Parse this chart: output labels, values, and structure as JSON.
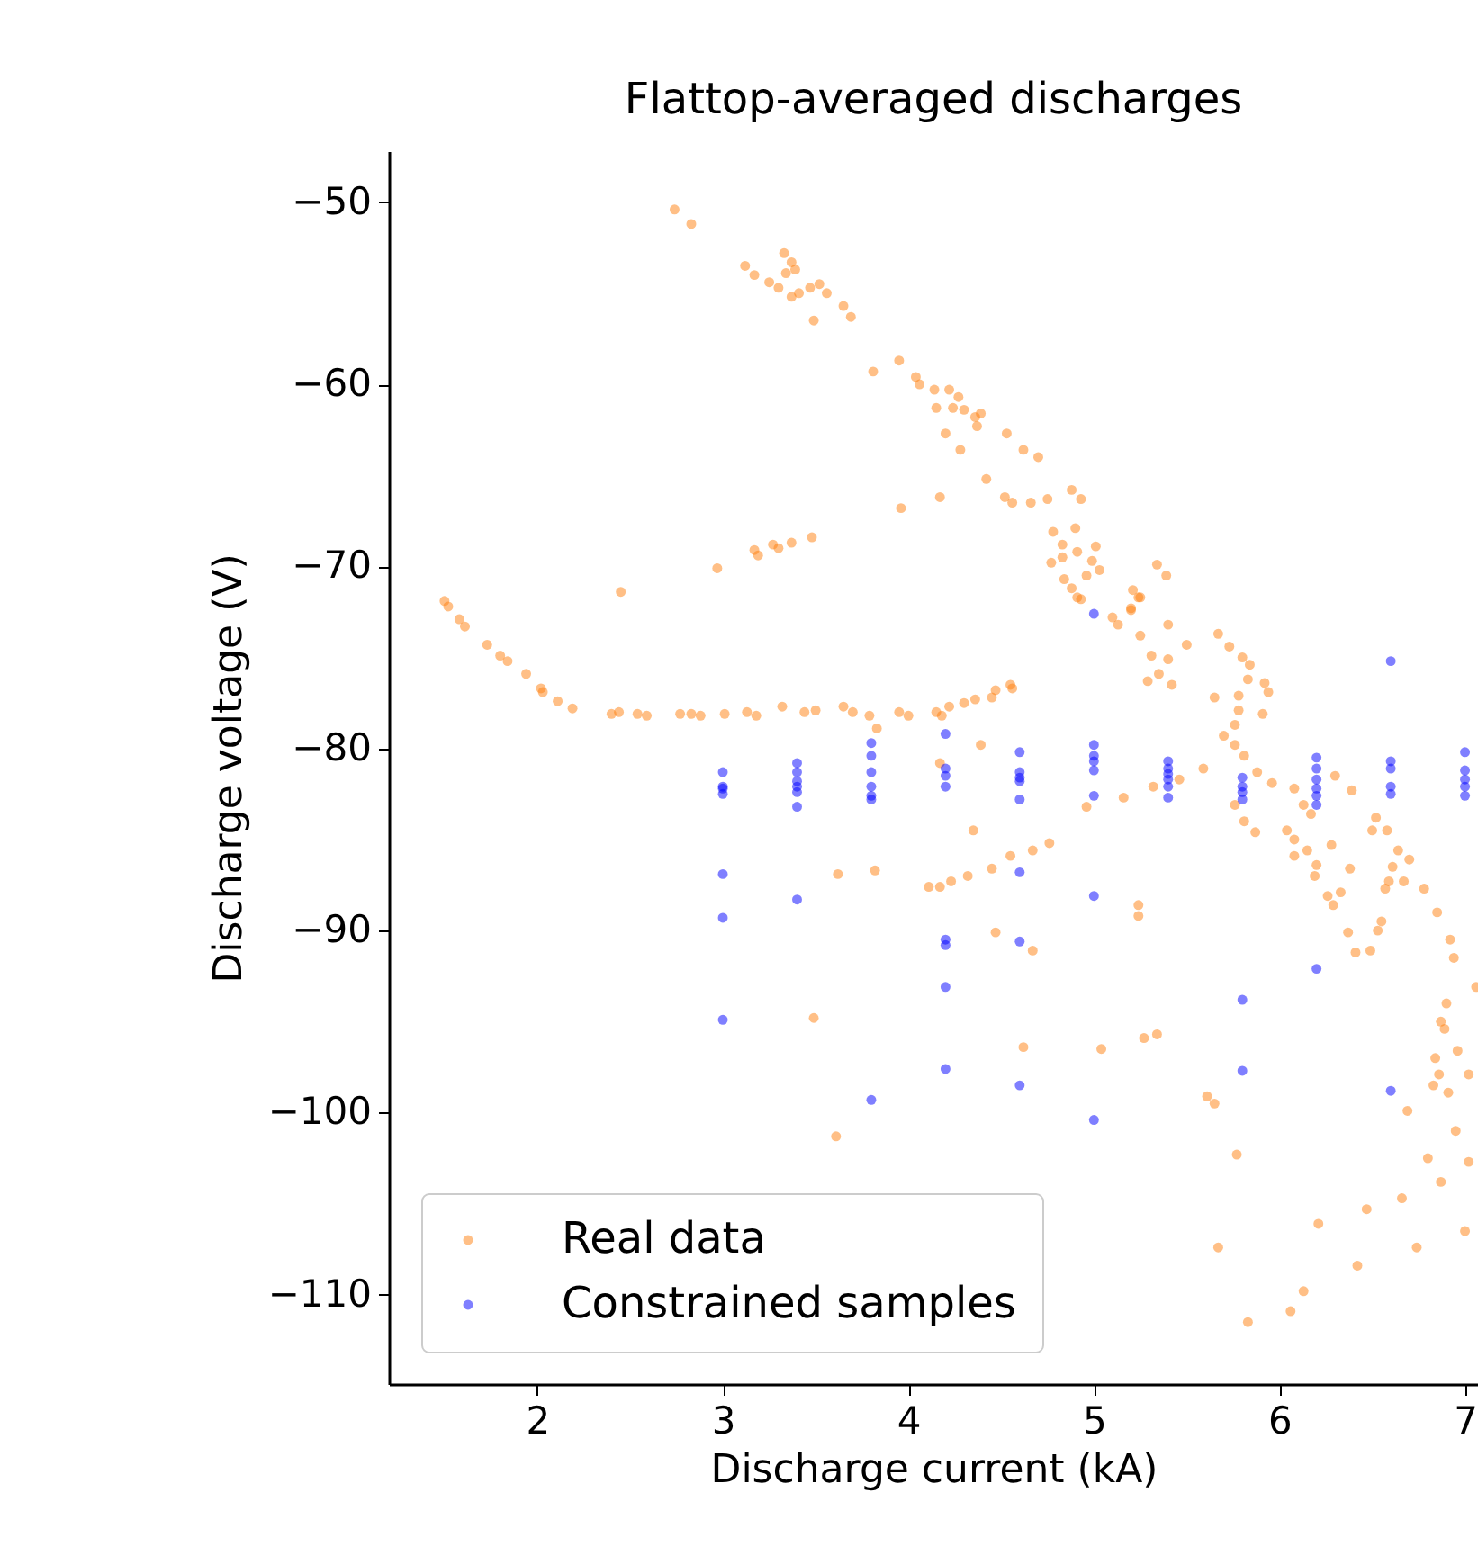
{
  "chart_data": {
    "type": "scatter",
    "title": "Flattop-averaged discharges",
    "xlabel": "Discharge current (kA)",
    "ylabel": "Discharge voltage (V)",
    "xlim": [
      1.2,
      7.07
    ],
    "ylim": [
      -114.9,
      -47.2
    ],
    "xticks": [
      2,
      3,
      4,
      5,
      6,
      7
    ],
    "yticks": [
      -50,
      -60,
      -70,
      -80,
      -90,
      -100,
      -110
    ],
    "grid": false,
    "legend": "bottom left",
    "marker": "circle",
    "series": [
      {
        "name": "Real data",
        "color": "#ff7f0e",
        "x": [
          1.5,
          1.52,
          1.58,
          1.61,
          1.73,
          1.8,
          1.84,
          1.94,
          2.02,
          2.03,
          2.11,
          2.19,
          2.4,
          2.44,
          2.54,
          2.59,
          2.77,
          2.83,
          2.88,
          3.01,
          3.13,
          3.18,
          3.32,
          3.44,
          3.5,
          3.65,
          3.7,
          3.79,
          3.83,
          3.95,
          4.0,
          4.15,
          4.22,
          4.3,
          4.36,
          4.18,
          4.47,
          4.55,
          4.56,
          4.45,
          4.39,
          4.17,
          2.74,
          2.83,
          3.12,
          3.33,
          3.37,
          3.39,
          3.34,
          3.17,
          3.25,
          3.3,
          3.37,
          3.41,
          3.47,
          3.52,
          3.56,
          3.65,
          3.49,
          3.69,
          3.95,
          3.81,
          4.04,
          4.06,
          4.14,
          4.22,
          4.27,
          4.3,
          4.36,
          4.15,
          4.24,
          4.39,
          4.37,
          4.2,
          4.28,
          4.53,
          4.62,
          4.7,
          4.42,
          4.17,
          4.52,
          4.56,
          4.66,
          4.75,
          4.88,
          4.93,
          4.78,
          4.9,
          4.83,
          5.01,
          4.91,
          4.77,
          4.83,
          4.99,
          5.03,
          4.96,
          4.84,
          4.88,
          4.93,
          5.34,
          5.39,
          5.21,
          5.25,
          5.2,
          2.97,
          3.17,
          3.27,
          3.37,
          3.48,
          3.96,
          2.45,
          3.19,
          3.3,
          4.91,
          5.24,
          5.1,
          5.13,
          5.2,
          5.4,
          5.25,
          5.31,
          5.4,
          5.5,
          5.35,
          5.42,
          5.29,
          5.67,
          5.73,
          5.8,
          5.84,
          5.92,
          5.94,
          5.83,
          5.91,
          5.78,
          5.78,
          5.65,
          5.76,
          5.7,
          5.76,
          5.81,
          5.88,
          5.96,
          5.59,
          5.46,
          5.32,
          5.16,
          4.96,
          5.76,
          5.81,
          5.87,
          6.08,
          6.13,
          6.17,
          6.3,
          6.39,
          6.04,
          6.08,
          6.15,
          6.08,
          6.2,
          6.19,
          6.28,
          6.38,
          6.26,
          6.29,
          6.33,
          6.52,
          6.5,
          6.58,
          6.64,
          6.7,
          6.61,
          6.59,
          6.67,
          6.57,
          6.78,
          6.85,
          6.92,
          6.94,
          7.06,
          6.9,
          6.87,
          6.89,
          6.55,
          6.53,
          6.37,
          6.41,
          6.49,
          4.35,
          4.17,
          4.23,
          4.32,
          4.45,
          4.55,
          4.67,
          4.76,
          4.47,
          4.67,
          5.24,
          5.24,
          5.34,
          5.27,
          3.62,
          3.82,
          3.49,
          4.11,
          4.62,
          5.04,
          5.61,
          5.65,
          5.77,
          5.67,
          5.83,
          6.06,
          6.13,
          6.21,
          6.42,
          6.47,
          6.66,
          6.74,
          6.69,
          6.8,
          6.87,
          7.0,
          7.02,
          6.95,
          6.91,
          6.83,
          6.86,
          6.84,
          6.96,
          7.02,
          3.61
        ],
        "values": [
          -71.9,
          -72.2,
          -72.9,
          -73.3,
          -74.3,
          -74.9,
          -75.2,
          -75.9,
          -76.7,
          -76.9,
          -77.4,
          -77.8,
          -78.1,
          -78.0,
          -78.1,
          -78.2,
          -78.1,
          -78.1,
          -78.2,
          -78.1,
          -78.0,
          -78.2,
          -77.7,
          -78.0,
          -77.9,
          -77.7,
          -78.0,
          -78.2,
          -78.9,
          -78.0,
          -78.2,
          -78.0,
          -77.7,
          -77.5,
          -77.3,
          -78.2,
          -76.8,
          -76.5,
          -76.7,
          -77.2,
          -79.8,
          -80.8,
          -50.4,
          -51.2,
          -53.5,
          -52.8,
          -53.3,
          -53.7,
          -53.9,
          -54.0,
          -54.4,
          -54.7,
          -55.2,
          -55.0,
          -54.7,
          -54.5,
          -55.0,
          -55.7,
          -56.5,
          -56.3,
          -58.7,
          -59.3,
          -59.6,
          -60.0,
          -60.3,
          -60.3,
          -60.7,
          -61.4,
          -61.8,
          -61.3,
          -61.3,
          -61.6,
          -62.3,
          -62.7,
          -63.6,
          -62.7,
          -63.6,
          -64.0,
          -65.2,
          -66.2,
          -66.2,
          -66.5,
          -66.5,
          -66.3,
          -65.8,
          -66.3,
          -68.1,
          -67.9,
          -68.8,
          -68.9,
          -69.2,
          -69.8,
          -69.5,
          -69.7,
          -70.2,
          -70.5,
          -70.7,
          -71.2,
          -71.8,
          -69.9,
          -70.5,
          -71.3,
          -71.7,
          -72.3,
          -70.1,
          -69.1,
          -68.8,
          -68.7,
          -68.4,
          -66.8,
          -71.4,
          -69.4,
          -69.0,
          -71.7,
          -71.7,
          -72.8,
          -73.2,
          -72.4,
          -73.2,
          -73.8,
          -74.9,
          -75.1,
          -74.3,
          -75.9,
          -76.5,
          -76.3,
          -73.7,
          -74.4,
          -75.0,
          -75.4,
          -76.4,
          -76.9,
          -76.2,
          -78.1,
          -77.1,
          -77.9,
          -77.2,
          -78.7,
          -79.3,
          -79.8,
          -80.4,
          -81.3,
          -81.9,
          -81.1,
          -81.7,
          -82.1,
          -82.7,
          -83.2,
          -83.1,
          -84.0,
          -84.6,
          -82.2,
          -83.1,
          -83.6,
          -81.5,
          -82.3,
          -84.5,
          -85.0,
          -85.6,
          -85.9,
          -86.4,
          -87.0,
          -85.3,
          -86.6,
          -88.1,
          -88.6,
          -87.9,
          -83.8,
          -84.5,
          -84.5,
          -85.6,
          -86.1,
          -86.5,
          -87.3,
          -87.3,
          -87.7,
          -87.7,
          -89.0,
          -90.5,
          -91.5,
          -93.1,
          -94.0,
          -95.0,
          -95.4,
          -89.5,
          -90.0,
          -90.1,
          -91.2,
          -91.1,
          -84.5,
          -87.6,
          -87.3,
          -87.0,
          -86.6,
          -85.9,
          -85.6,
          -85.2,
          -90.1,
          -91.1,
          -89.2,
          -88.6,
          -95.7,
          -95.9,
          -86.9,
          -86.7,
          -94.8,
          -87.6,
          -96.4,
          -96.5,
          -99.1,
          -99.5,
          -102.3,
          -107.4,
          -111.5,
          -110.9,
          -109.8,
          -106.1,
          -108.4,
          -105.3,
          -104.7,
          -107.4,
          -99.9,
          -102.5,
          -103.8,
          -106.5,
          -102.7,
          -101.0,
          -98.9,
          -98.5,
          -97.9,
          -97.0,
          -96.6,
          -97.9,
          -101.3
        ]
      },
      {
        "name": "Constrained samples",
        "color": "#0000ff",
        "x": [
          3.0,
          3.0,
          3.0,
          3.0,
          3.0,
          3.0,
          3.0,
          3.4,
          3.4,
          3.4,
          3.4,
          3.4,
          3.4,
          3.4,
          3.8,
          3.8,
          3.8,
          3.8,
          3.8,
          3.8,
          3.8,
          4.2,
          4.2,
          4.2,
          4.2,
          4.2,
          4.2,
          4.2,
          4.2,
          4.6,
          4.6,
          4.6,
          4.6,
          4.6,
          4.6,
          4.6,
          4.6,
          5.0,
          5.0,
          5.0,
          5.0,
          5.0,
          5.0,
          5.0,
          5.0,
          5.4,
          5.4,
          5.4,
          5.4,
          5.4,
          5.4,
          5.8,
          5.8,
          5.8,
          5.8,
          5.8,
          5.8,
          6.2,
          6.2,
          6.2,
          6.2,
          6.2,
          6.2,
          6.2,
          6.6,
          6.6,
          6.6,
          6.6,
          6.6,
          6.6,
          7.0,
          7.0,
          7.0,
          7.0,
          7.0
        ],
        "values": [
          -81.3,
          -82.1,
          -82.2,
          -82.5,
          -86.9,
          -89.3,
          -94.9,
          -80.8,
          -81.3,
          -81.8,
          -82.1,
          -82.4,
          -83.2,
          -88.3,
          -79.7,
          -80.4,
          -81.3,
          -82.1,
          -82.6,
          -82.8,
          -99.3,
          -79.2,
          -81.1,
          -81.5,
          -82.1,
          -90.5,
          -90.8,
          -93.1,
          -97.6,
          -80.2,
          -81.3,
          -81.6,
          -81.8,
          -82.8,
          -86.8,
          -90.6,
          -98.5,
          -72.6,
          -79.8,
          -80.4,
          -80.7,
          -81.2,
          -82.6,
          -88.1,
          -100.4,
          -80.7,
          -81.1,
          -81.4,
          -81.7,
          -82.1,
          -82.7,
          -81.6,
          -82.1,
          -82.4,
          -82.8,
          -93.8,
          -97.7,
          -80.5,
          -81.1,
          -81.7,
          -82.2,
          -82.6,
          -83.1,
          -92.1,
          -75.2,
          -80.7,
          -81.1,
          -82.1,
          -82.5,
          -98.8,
          -80.2,
          -81.2,
          -81.7,
          -82.1,
          -82.6
        ]
      }
    ]
  }
}
